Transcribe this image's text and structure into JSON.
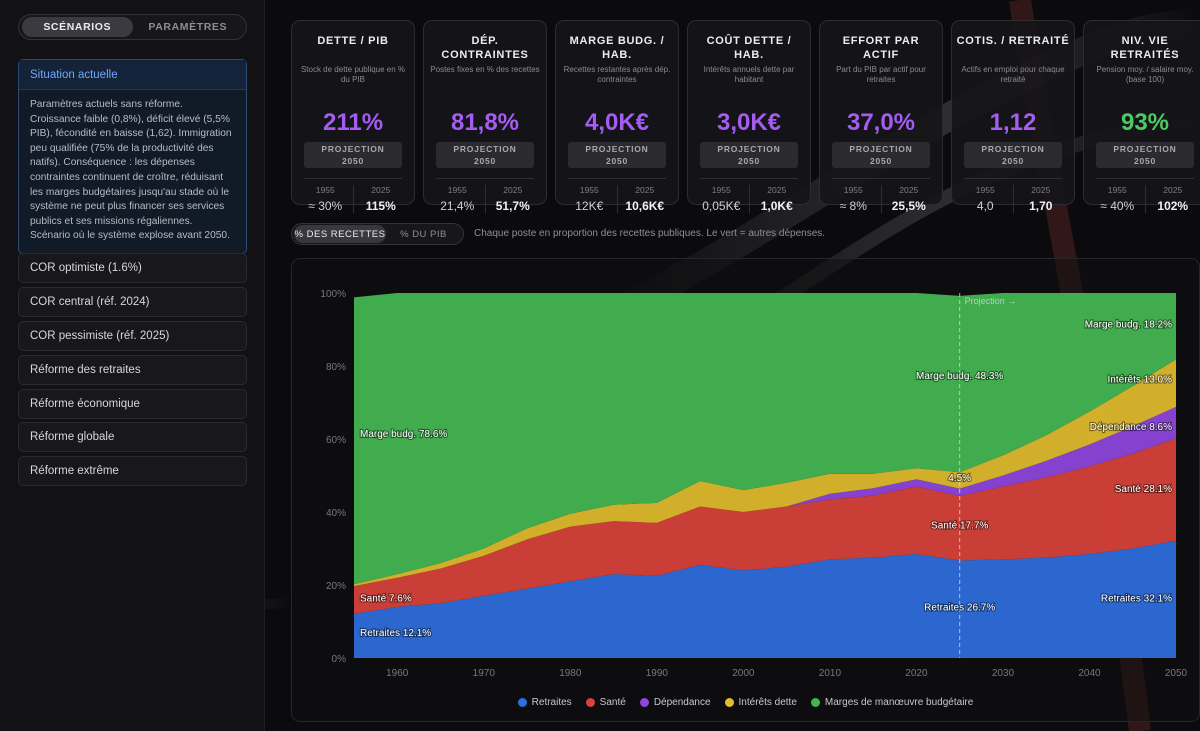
{
  "sidebar": {
    "segments": [
      "SCÉNARIOS",
      "PARAMÈTRES"
    ],
    "active_scenario": {
      "title": "Situation actuelle",
      "description": "Paramètres actuels sans réforme. Croissance faible (0,8%), déficit élevé (5,5% PIB), fécondité en baisse (1,62). Immigration peu qualifiée (75% de la productivité des natifs). Conséquence : les dépenses contraintes continuent de croître, réduisant les marges budgétaires jusqu'au stade où le système ne peut plus financer ses services publics et ses missions régaliennes. Scénario où le système explose avant 2050."
    },
    "scenarios": [
      "COR optimiste (1.6%)",
      "COR central (réf. 2024)",
      "COR pessimiste (réf. 2025)",
      "Réforme des retraites",
      "Réforme économique",
      "Réforme globale",
      "Réforme extrême"
    ]
  },
  "cards": [
    {
      "title": "DETTE / PIB",
      "subtitle": "Stock de dette publique en % du PIB",
      "value": "211%",
      "projection": [
        "PROJECTION",
        "2050"
      ],
      "y1": "1955",
      "v1": "≈ 30%",
      "y2": "2025",
      "v2": "115%",
      "color": "purple"
    },
    {
      "title": "DÉP. CONTRAINTES",
      "subtitle": "Postes fixes en % des recettes",
      "value": "81,8%",
      "projection": [
        "PROJECTION",
        "2050"
      ],
      "y1": "1955",
      "v1": "21,4%",
      "y2": "2025",
      "v2": "51,7%",
      "color": "purple"
    },
    {
      "title": "MARGE BUDG. / HAB.",
      "subtitle": "Recettes restantes après dép. contraintes",
      "value": "4,0K€",
      "projection": [
        "PROJECTION",
        "2050"
      ],
      "y1": "1955",
      "v1": "12K€",
      "y2": "2025",
      "v2": "10,6K€",
      "color": "purple"
    },
    {
      "title": "COÛT DETTE / HAB.",
      "subtitle": "Intérêts annuels dette par habitant",
      "value": "3,0K€",
      "projection": [
        "PROJECTION",
        "2050"
      ],
      "y1": "1955",
      "v1": "0,05K€",
      "y2": "2025",
      "v2": "1,0K€",
      "color": "purple"
    },
    {
      "title": "EFFORT PAR ACTIF",
      "subtitle": "Part du PIB par actif pour retraites",
      "value": "37,0%",
      "projection": [
        "PROJECTION",
        "2050"
      ],
      "y1": "1955",
      "v1": "≈ 8%",
      "y2": "2025",
      "v2": "25,5%",
      "color": "purple"
    },
    {
      "title": "COTIS. / RETRAITÉ",
      "subtitle": "Actifs en emploi pour chaque retraité",
      "value": "1,12",
      "projection": [
        "PROJECTION",
        "2050"
      ],
      "y1": "1955",
      "v1": "4,0",
      "y2": "2025",
      "v2": "1,70",
      "color": "purple"
    },
    {
      "title": "NIV. VIE RETRAITÉS",
      "subtitle": "Pension moy. / salaire moy. (base 100)",
      "value": "93%",
      "projection": [
        "PROJECTION",
        "2050"
      ],
      "y1": "1955",
      "v1": "≈ 40%",
      "y2": "2025",
      "v2": "102%",
      "color": "green"
    }
  ],
  "tabs": [
    "% DES RECETTES",
    "% DU PIB"
  ],
  "hint": "Chaque poste en proportion des recettes publiques. Le vert = autres dépenses.",
  "chart_data": {
    "type": "area",
    "stacked": true,
    "x": [
      1955,
      1960,
      1965,
      1970,
      1975,
      1980,
      1985,
      1990,
      1995,
      2000,
      2005,
      2010,
      2015,
      2020,
      2025,
      2030,
      2035,
      2040,
      2045,
      2050
    ],
    "series": [
      {
        "name": "Retraites",
        "color": "#2e6fdf",
        "values": [
          12.1,
          14,
          15,
          17,
          19,
          21,
          23,
          22.5,
          25.5,
          24,
          25,
          27,
          27.5,
          28.5,
          26.7,
          27,
          27.5,
          28.5,
          30,
          32.1
        ]
      },
      {
        "name": "Santé",
        "color": "#d9423a",
        "values": [
          7.6,
          8,
          9.5,
          11,
          13.5,
          15,
          14.5,
          14.5,
          16,
          16,
          16.5,
          16.5,
          17,
          18.5,
          17.7,
          20,
          22,
          24,
          26,
          28.1
        ]
      },
      {
        "name": "Dépendance",
        "color": "#8e46e0",
        "values": [
          0,
          0,
          0,
          0,
          0,
          0,
          0,
          0,
          0,
          0,
          0,
          1.5,
          2,
          2,
          2,
          3,
          4.5,
          6,
          7.5,
          8.6
        ]
      },
      {
        "name": "Intérêts dette",
        "color": "#e3bd2c",
        "values": [
          0.5,
          1,
          1.5,
          2,
          3,
          3.5,
          4.5,
          5.5,
          7,
          6,
          6.5,
          5.5,
          4,
          3,
          4.5,
          5.5,
          7,
          9,
          11,
          13.0
        ]
      },
      {
        "name": "Marges de manœuvre budgétaire",
        "color": "#43b551",
        "values": [
          78.6,
          77,
          74,
          70,
          64.5,
          60.5,
          58,
          57.5,
          51.5,
          54,
          52,
          49.5,
          49.5,
          48,
          48.3,
          44.5,
          39,
          32.5,
          25.5,
          18.2
        ]
      }
    ],
    "ylim": [
      0,
      100
    ],
    "yticks": [
      "0%",
      "20%",
      "40%",
      "60%",
      "80%",
      "100%"
    ],
    "xticks": [
      1960,
      1970,
      1980,
      1990,
      2000,
      2010,
      2020,
      2030,
      2040,
      2050
    ],
    "projection_label": "Projection →",
    "projection_year": 2025,
    "labels_left": [
      "Marge budg. 78.6%",
      "Santé 7.6%",
      "Retraites 12.1%"
    ],
    "labels_mid": [
      "Marge budg. 48.3%",
      "4.5%",
      "Santé 17.7%",
      "Retraites 26.7%"
    ],
    "labels_right": [
      "Marge budg. 18.2%",
      "Intérêts 13.0%",
      "Dépendance 8.6%",
      "Santé 28.1%",
      "Retraites 32.1%"
    ]
  }
}
